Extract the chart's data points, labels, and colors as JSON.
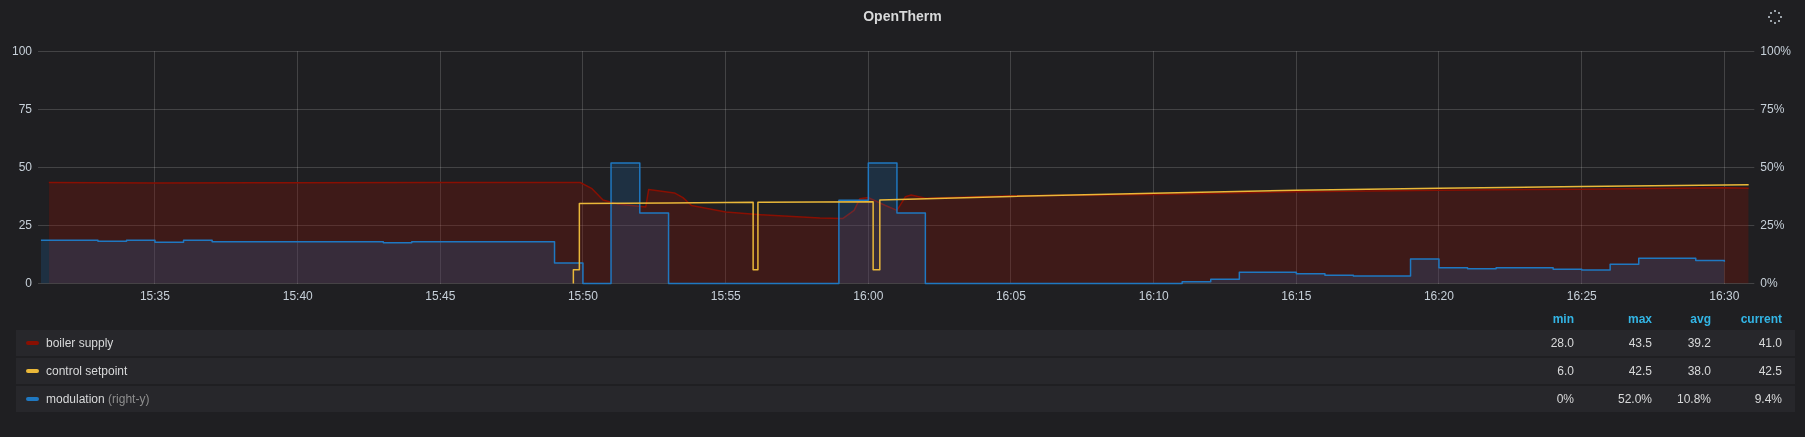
{
  "chart_data": {
    "type": "line",
    "title": "OpenTherm",
    "series": [
      {
        "name": "boiler supply",
        "type": "area",
        "color": "#890f02",
        "x": [
          15.5213,
          15.5833,
          15.6667,
          15.75,
          15.8317,
          15.8383,
          15.845,
          15.8533,
          15.87,
          15.8717,
          15.8867,
          15.8917,
          15.8967,
          15.9167,
          15.94,
          15.9717,
          15.985,
          15.9917,
          15.995,
          16.0,
          16.01,
          16.0167,
          16.0217,
          16.025,
          16.0333,
          16.0833,
          16.1667,
          16.25,
          16.3333,
          16.4167,
          16.5,
          16.5142
        ],
        "values": [
          43.5,
          43.3,
          43.4,
          43.5,
          43.5,
          41,
          36,
          34.3,
          33,
          40.5,
          39,
          37,
          33.6,
          30.8,
          29.5,
          28.2,
          28,
          31.5,
          36.5,
          37,
          33.6,
          31.5,
          37.4,
          38.1,
          36.7,
          37.8,
          38.3,
          39.5,
          40.2,
          40.6,
          41.2,
          41.0
        ]
      },
      {
        "name": "control setpoint",
        "type": "line",
        "color": "#eab839",
        "x": [
          15.8277,
          15.8277,
          15.8312,
          15.8312,
          15.8833,
          15.9327,
          15.9327,
          15.9355,
          15.9355,
          16.0028,
          16.0028,
          16.0067,
          16.0067,
          16.0833,
          16.1667,
          16.25,
          16.3333,
          16.4167,
          16.5142
        ],
        "values": [
          0,
          6,
          6,
          34.5,
          34.7,
          35,
          6,
          6,
          35,
          35.2,
          6,
          6,
          36,
          37.5,
          38.9,
          40.2,
          41,
          41.8,
          42.5
        ]
      },
      {
        "name": "modulation (right-y)",
        "type": "step",
        "axis": "y2",
        "color": "#1f78c1",
        "x": [
          15.5167,
          15.55,
          15.5667,
          15.5833,
          15.6,
          15.6167,
          15.7167,
          15.7333,
          15.8167,
          15.8333,
          15.8497,
          15.8665,
          15.8833,
          15.9828,
          16.0,
          16.0167,
          16.0333,
          16.1833,
          16.2,
          16.2167,
          16.25,
          16.2667,
          16.2833,
          16.3167,
          16.3333,
          16.35,
          16.3667,
          16.4,
          16.4167,
          16.4333,
          16.45,
          16.4833,
          16.5
        ],
        "values": [
          18.7,
          18.2,
          18.6,
          17.8,
          18.6,
          18.0,
          17.6,
          18.0,
          8.9,
          0,
          51.9,
          30.4,
          0,
          35.9,
          51.9,
          30.4,
          0,
          0.8,
          1.9,
          4.9,
          4.2,
          3.6,
          3.3,
          10.6,
          6.8,
          6.4,
          6.8,
          6.2,
          5.9,
          8.3,
          10.9,
          9.9,
          9.4
        ]
      }
    ],
    "xlim": [
      15.515,
      16.5175
    ],
    "xticks": [
      {
        "value": 15.5833,
        "label": "15:35"
      },
      {
        "value": 15.6667,
        "label": "15:40"
      },
      {
        "value": 15.75,
        "label": "15:45"
      },
      {
        "value": 15.8333,
        "label": "15:50"
      },
      {
        "value": 15.9167,
        "label": "15:55"
      },
      {
        "value": 16.0,
        "label": "16:00"
      },
      {
        "value": 16.0833,
        "label": "16:05"
      },
      {
        "value": 16.1667,
        "label": "16:10"
      },
      {
        "value": 16.25,
        "label": "16:15"
      },
      {
        "value": 16.3333,
        "label": "16:20"
      },
      {
        "value": 16.4167,
        "label": "16:25"
      },
      {
        "value": 16.5,
        "label": "16:30"
      }
    ],
    "ylim": [
      0,
      100
    ],
    "yticks": [
      0,
      25,
      50,
      75,
      100
    ],
    "y2lim": [
      0,
      100
    ],
    "y2ticks": [
      {
        "value": 0,
        "label": "0%"
      },
      {
        "value": 25,
        "label": "25%"
      },
      {
        "value": 50,
        "label": "50%"
      },
      {
        "value": 75,
        "label": "75%"
      },
      {
        "value": 100,
        "label": "100%"
      }
    ],
    "grid": true,
    "legend": "bottom",
    "marker": "none",
    "line_style": "solid",
    "annotations": [
      "min",
      "max",
      "avg",
      "current",
      "28.0",
      "43.5",
      "39.2",
      "41.0",
      "6.0",
      "42.5",
      "38.0",
      "42.5",
      "0%",
      "52.0%",
      "10.8%",
      "9.4%"
    ]
  }
}
